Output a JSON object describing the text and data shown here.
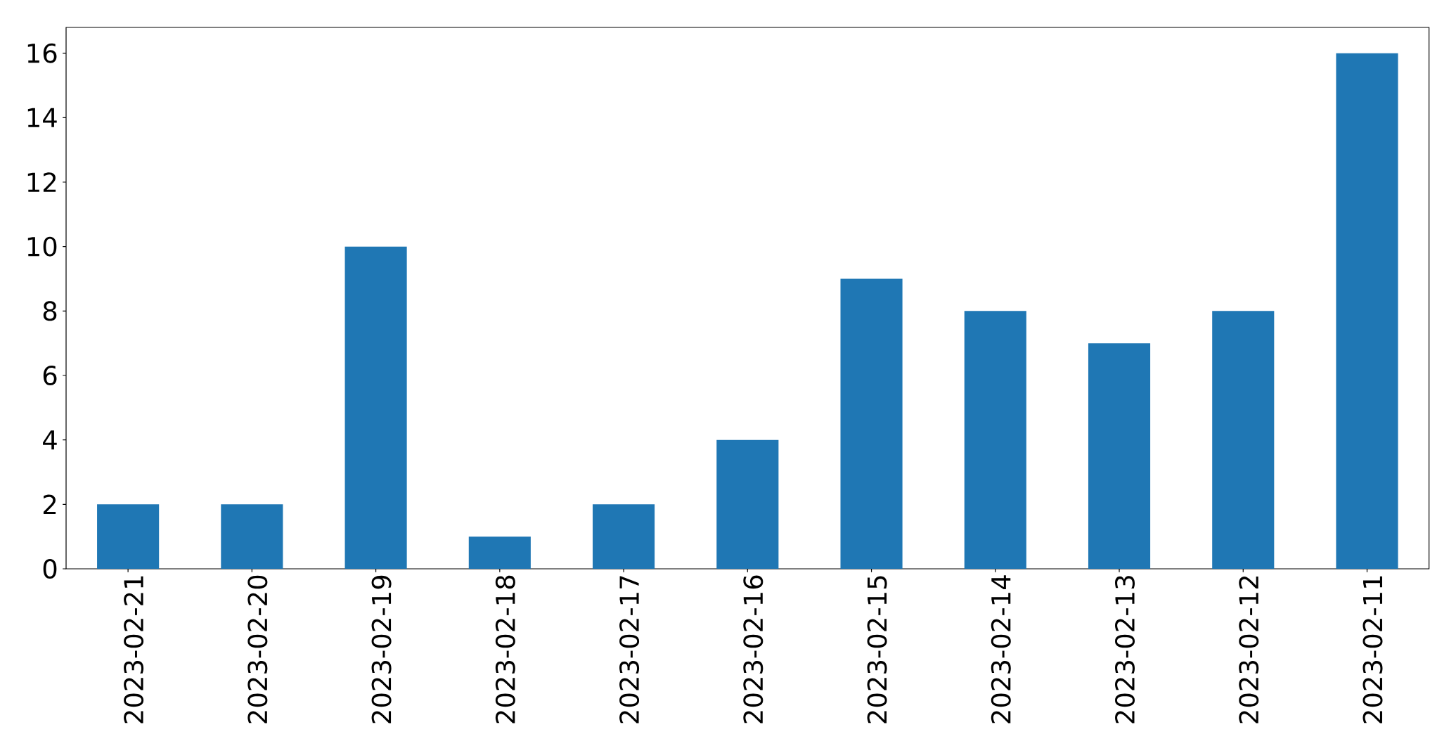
{
  "chart_data": {
    "type": "bar",
    "categories": [
      "2023-02-21",
      "2023-02-20",
      "2023-02-19",
      "2023-02-18",
      "2023-02-17",
      "2023-02-16",
      "2023-02-15",
      "2023-02-14",
      "2023-02-13",
      "2023-02-12",
      "2023-02-11"
    ],
    "values": [
      2,
      2,
      10,
      1,
      2,
      4,
      9,
      8,
      7,
      8,
      16
    ],
    "color": "#1f77b4",
    "ylim": [
      0,
      16.8
    ],
    "yticks": [
      0,
      2,
      4,
      6,
      8,
      10,
      12,
      14,
      16
    ]
  }
}
